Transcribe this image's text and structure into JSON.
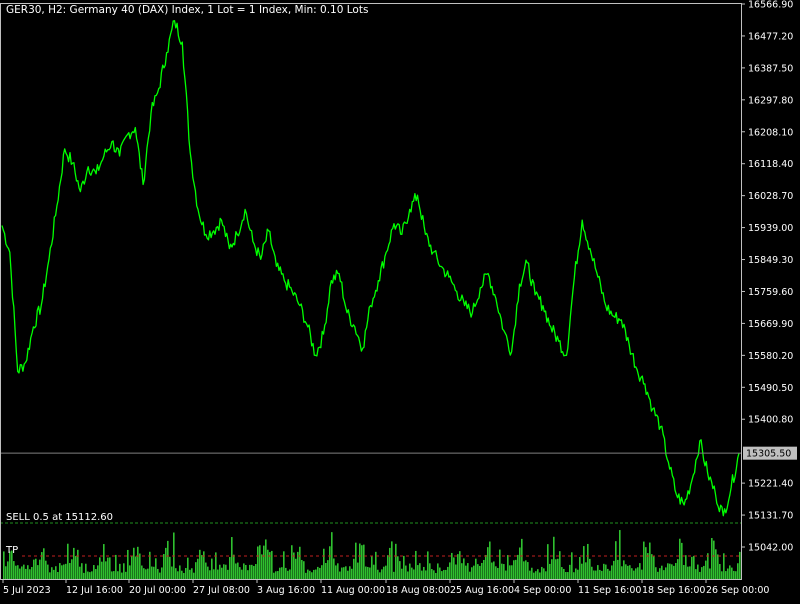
{
  "chart_header": "GER30, H2:  Germany 40 (DAX) Index, 1 Lot = 1 Index, Min: 0.10 Lots",
  "colors": {
    "background": "#000000",
    "price_line": "#00ff00",
    "volume": "#2fc02f",
    "grid_frame": "#c0c0c0",
    "current_price_line": "#808080",
    "order_line": "#1f8f1f",
    "tp_line": "#c02020"
  },
  "order": {
    "label": "SELL 0.5 at 15112.60",
    "price": 15112.6
  },
  "tp": {
    "label": "TP"
  },
  "current_price": {
    "label": "15305.50",
    "value": 15305.5
  },
  "chart_data": {
    "type": "line",
    "title": "",
    "y_ticks": [
      "16566.90",
      "16477.20",
      "16387.50",
      "16297.80",
      "16208.10",
      "16118.40",
      "16028.70",
      "15939.00",
      "15849.30",
      "15759.60",
      "15669.90",
      "15580.20",
      "15490.50",
      "15400.80",
      "15221.40",
      "15131.70",
      "15042.00"
    ],
    "ylim": [
      15000,
      16570
    ],
    "x_ticks": [
      "5 Jul 2023",
      "12 Jul 16:00",
      "20 Jul 00:00",
      "27 Jul 08:00",
      "3 Aug 16:00",
      "11 Aug 00:00",
      "18 Aug 08:00",
      "25 Aug 16:00",
      "4 Sep 00:00",
      "11 Sep 16:00",
      "18 Sep 16:00",
      "26 Sep 00:00"
    ],
    "x_index": [
      0,
      12,
      24,
      36,
      48,
      60,
      72,
      84,
      96,
      108,
      120,
      132,
      144,
      156,
      168,
      180,
      192,
      204,
      216,
      228,
      240,
      252,
      264,
      276,
      288,
      300,
      312,
      324,
      336,
      348,
      360,
      372,
      384,
      396,
      408,
      420,
      432,
      444,
      456,
      468,
      480,
      492,
      504,
      516,
      528,
      540,
      552,
      564,
      576,
      588,
      600,
      612,
      624,
      636,
      648,
      660,
      672,
      684,
      696,
      708,
      720,
      732,
      744,
      756,
      768,
      780,
      792,
      804,
      816,
      828,
      840,
      852,
      864,
      876,
      888,
      900,
      912,
      924,
      936,
      948,
      960,
      972,
      984,
      996,
      1008,
      1020,
      1032,
      1044,
      1056,
      1068,
      1080,
      1092,
      1104,
      1116,
      1128
    ],
    "y": [
      15945,
      15870,
      15535,
      15560,
      15660,
      15720,
      15850,
      16000,
      16160,
      16120,
      16040,
      16110,
      16090,
      16140,
      16180,
      16140,
      16200,
      16220,
      16060,
      16260,
      16330,
      16430,
      16520,
      16460,
      16150,
      15990,
      15920,
      15930,
      15960,
      15880,
      15920,
      15990,
      15900,
      15850,
      15930,
      15830,
      15790,
      15760,
      15720,
      15660,
      15580,
      15640,
      15790,
      15810,
      15700,
      15660,
      15600,
      15720,
      15790,
      15870,
      15950,
      15920,
      15990,
      16030,
      15920,
      15870,
      15830,
      15800,
      15760,
      15720,
      15700,
      15770,
      15810,
      15740,
      15650,
      15590,
      15780,
      15840,
      15750,
      15720,
      15660,
      15620,
      15580,
      15800,
      15960,
      15880,
      15800,
      15720,
      15690,
      15680,
      15610,
      15540,
      15500,
      15430,
      15380,
      15280,
      15190,
      15160,
      15230,
      15340,
      15250,
      15190,
      15130,
      15210,
      15305.5
    ]
  }
}
